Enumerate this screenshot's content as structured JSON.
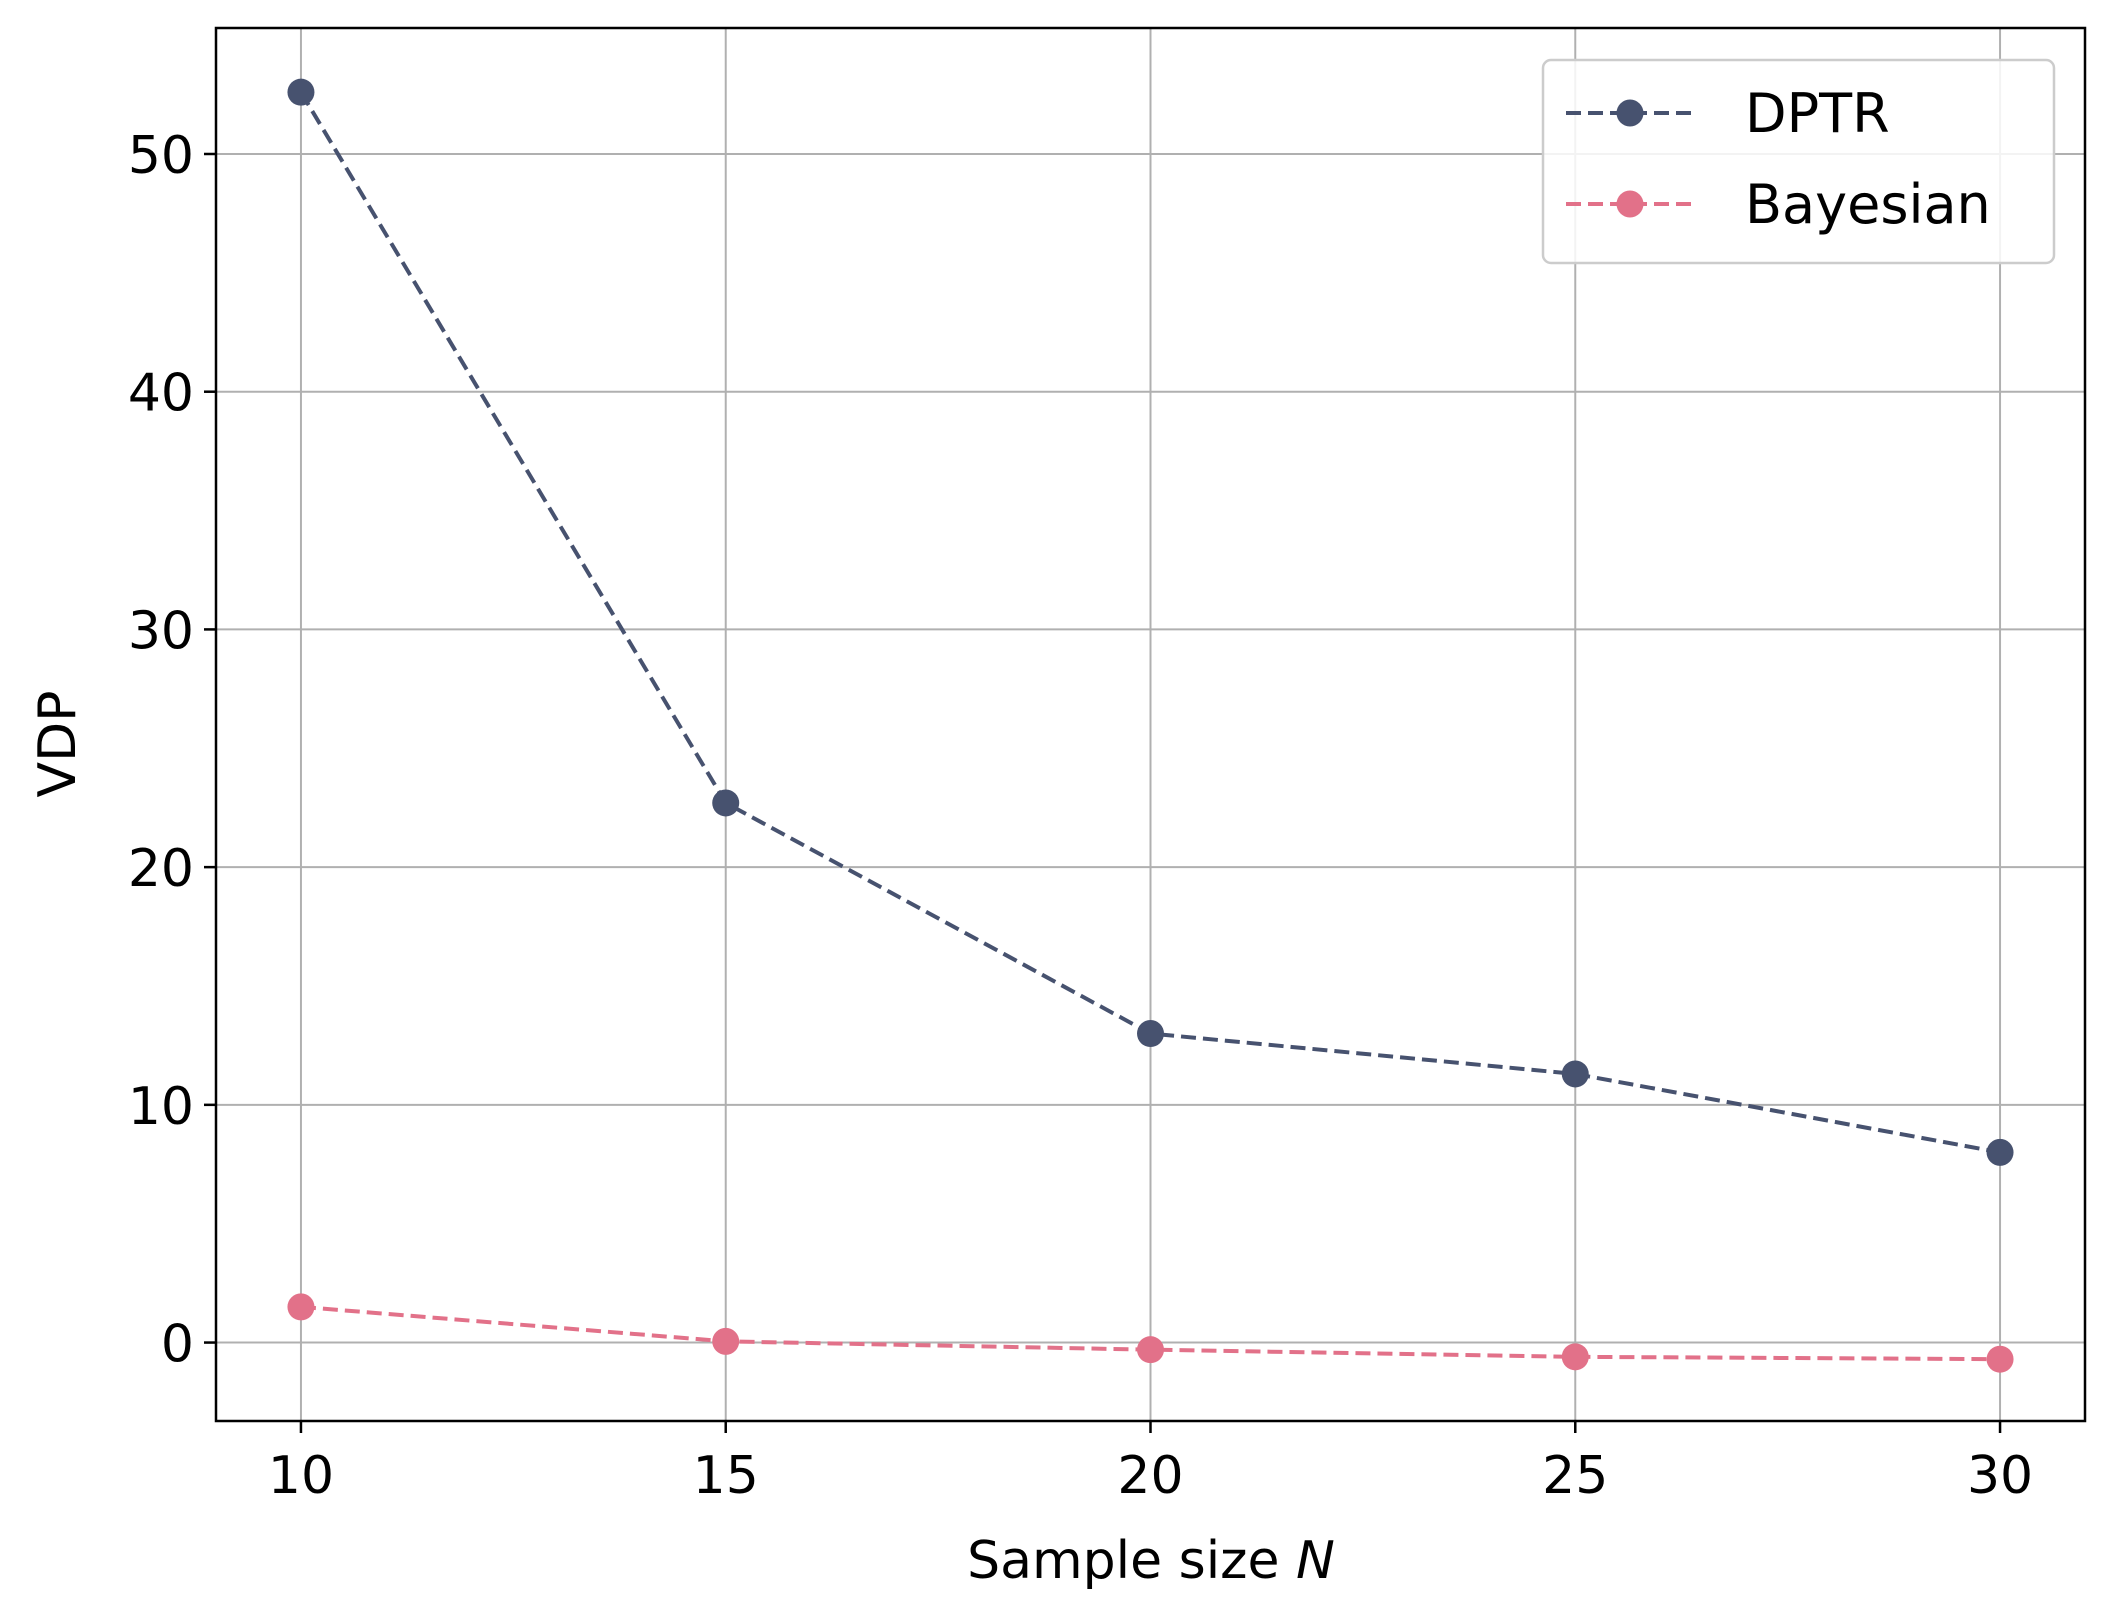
{
  "chart_data": {
    "type": "line",
    "x": [
      10,
      15,
      20,
      25,
      30
    ],
    "series": [
      {
        "name": "DPTR",
        "values": [
          52.6,
          22.7,
          13.0,
          11.3,
          8.0
        ],
        "color": "#47526f",
        "linestyle": "dashed",
        "marker": "circle"
      },
      {
        "name": "Bayesian",
        "values": [
          1.5,
          0.05,
          -0.3,
          -0.6,
          -0.7
        ],
        "color": "#e27189",
        "linestyle": "dashed",
        "marker": "circle"
      }
    ],
    "xlabel_prefix": "Sample size ",
    "xlabel_var": "N",
    "ylabel": "VDP",
    "xticks": [
      "10",
      "15",
      "20",
      "25",
      "30"
    ],
    "yticks": [
      "0",
      "10",
      "20",
      "30",
      "40",
      "50"
    ],
    "xlim": [
      9,
      31
    ],
    "ylim": [
      -3.3,
      55.3
    ],
    "grid": true,
    "legend_position": "top-right"
  }
}
